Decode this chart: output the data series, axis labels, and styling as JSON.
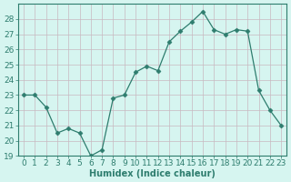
{
  "x": [
    0,
    1,
    2,
    3,
    4,
    5,
    6,
    7,
    8,
    9,
    10,
    11,
    12,
    13,
    14,
    15,
    16,
    17,
    18,
    19,
    20,
    21,
    22,
    23
  ],
  "y": [
    23.0,
    23.0,
    22.2,
    20.5,
    20.8,
    20.5,
    19.0,
    19.4,
    22.8,
    23.0,
    24.5,
    24.9,
    24.6,
    26.5,
    27.2,
    27.8,
    28.5,
    27.3,
    27.0,
    27.3,
    27.2,
    23.3,
    22.0,
    21.0
  ],
  "line_color": "#2e7d6e",
  "marker": "D",
  "marker_size": 2.5,
  "bg_color": "#d6f5f0",
  "grid_color": "#c8b8c0",
  "xlabel": "Humidex (Indice chaleur)",
  "ylim": [
    19,
    29
  ],
  "xlim": [
    -0.5,
    23.5
  ],
  "yticks": [
    19,
    20,
    21,
    22,
    23,
    24,
    25,
    26,
    27,
    28
  ],
  "xticks": [
    0,
    1,
    2,
    3,
    4,
    5,
    6,
    7,
    8,
    9,
    10,
    11,
    12,
    13,
    14,
    15,
    16,
    17,
    18,
    19,
    20,
    21,
    22,
    23
  ],
  "label_fontsize": 7,
  "tick_fontsize": 6.5,
  "spine_color": "#2e7d6e",
  "tick_color": "#2e7d6e"
}
